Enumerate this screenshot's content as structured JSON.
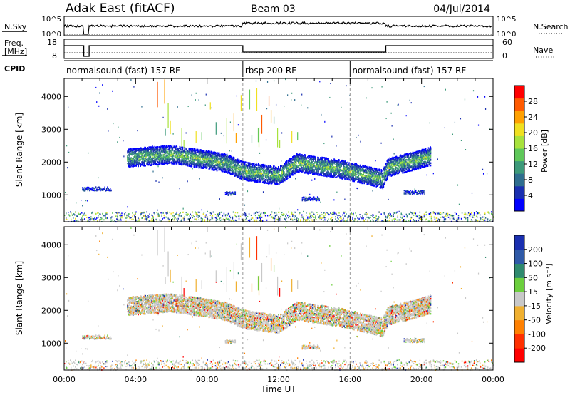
{
  "header": {
    "title": "Adak East (fitACF)",
    "beam": "Beam 03",
    "date": "04/Jul/2014"
  },
  "nsky_panel": {
    "label": "N.Sky",
    "ticks": [
      "10^5",
      "10^0"
    ],
    "right_label": "N.Search",
    "right_ticks": [
      "10^5",
      "10^0"
    ]
  },
  "freq_panel": {
    "label_line1": "Freq.",
    "label_line2": "[MHz]",
    "ticks": [
      "18",
      "8"
    ],
    "right_label": "Nave",
    "right_ticks": [
      "60",
      "0"
    ]
  },
  "cpid": {
    "label": "CPID",
    "segments": [
      {
        "start_hour": 0,
        "end_hour": 10,
        "name": "normalsound (fast) 157 RF"
      },
      {
        "start_hour": 10,
        "end_hour": 16,
        "name": "rbsp 200 RF"
      },
      {
        "start_hour": 16,
        "end_hour": 24,
        "name": "normalsound (fast) 157 RF"
      }
    ]
  },
  "chart_data": [
    {
      "type": "heatmap",
      "panel": "power",
      "ylabel": "Slant Range [km]",
      "yticks": [
        "1000",
        "2000",
        "3000",
        "4000"
      ],
      "ylim": [
        180,
        4550
      ],
      "colorbar_label": "Power [dB]",
      "colorbar_ticks": [
        "4",
        "8",
        "12",
        "16",
        "20",
        "24",
        "28"
      ],
      "colorbar_colors": [
        "#0000ff",
        "#1a2fb0",
        "#2f6e8f",
        "#3d9a7a",
        "#5fc85a",
        "#a8e23d",
        "#f0e020",
        "#ffa000",
        "#ff5a00",
        "#ff0000"
      ],
      "echo_band": [
        {
          "hour": 3.5,
          "range_km": 2150
        },
        {
          "hour": 6.0,
          "range_km": 2250
        },
        {
          "hour": 9.0,
          "range_km": 2000
        },
        {
          "hour": 10.0,
          "range_km": 1750
        },
        {
          "hour": 12.0,
          "range_km": 1600
        },
        {
          "hour": 13.0,
          "range_km": 2000
        },
        {
          "hour": 15.5,
          "range_km": 1800
        },
        {
          "hour": 17.8,
          "range_km": 1500
        },
        {
          "hour": 18.1,
          "range_km": 1850
        },
        {
          "hour": 20.5,
          "range_km": 2200
        }
      ]
    },
    {
      "type": "heatmap",
      "panel": "velocity",
      "ylabel": "Slant Range [km]",
      "yticks": [
        "1000",
        "2000",
        "3000",
        "4000"
      ],
      "ylim": [
        180,
        4550
      ],
      "colorbar_label": "Velocity [m s⁻¹]",
      "colorbar_ticks": [
        "200",
        "100",
        "50",
        "15",
        "-15",
        "-50",
        "-100",
        "-200"
      ],
      "colorbar_colors": [
        "#1a2fb0",
        "#2f5aa8",
        "#2f8a6e",
        "#6ccf3d",
        "#c8c8c8",
        "#f0b030",
        "#ff8000",
        "#ff3000",
        "#ff0000"
      ]
    }
  ],
  "time_axis": {
    "xlabel": "Time UT",
    "ticks": [
      "00:00",
      "04:00",
      "08:00",
      "12:00",
      "16:00",
      "20:00",
      "00:00"
    ],
    "xlim": [
      0,
      24
    ]
  }
}
